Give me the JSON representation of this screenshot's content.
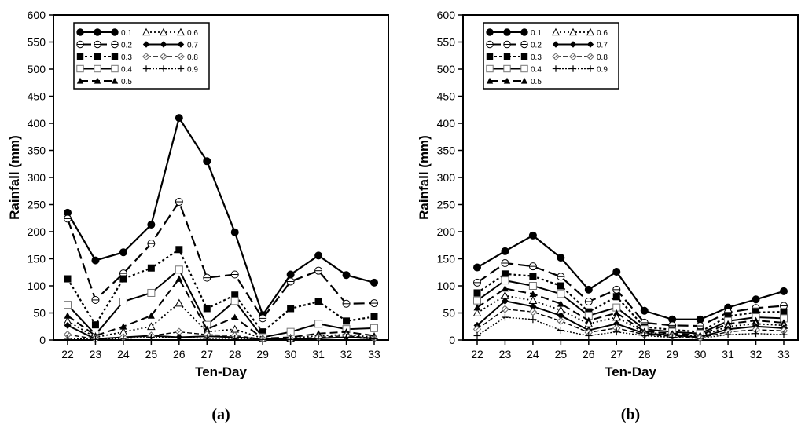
{
  "chart_data": [
    {
      "type": "line",
      "panel_label": "(a)",
      "xlabel": "Ten-Day",
      "ylabel": "Rainfall (mm)",
      "ylim": [
        0,
        600
      ],
      "yticks": [
        "0",
        "50",
        "100",
        "150",
        "200",
        "250",
        "300",
        "350",
        "400",
        "450",
        "500",
        "550",
        "600"
      ],
      "x": [
        "22",
        "23",
        "24",
        "25",
        "26",
        "27",
        "28",
        "29",
        "30",
        "31",
        "32",
        "33"
      ],
      "legend_position": "top-left",
      "series": [
        {
          "name": "0.1",
          "values": [
            235,
            147,
            162,
            213,
            410,
            330,
            199,
            46,
            121,
            156,
            120,
            106
          ]
        },
        {
          "name": "0.2",
          "values": [
            224,
            74,
            123,
            178,
            255,
            115,
            121,
            40,
            108,
            128,
            67,
            68
          ]
        },
        {
          "name": "0.3",
          "values": [
            113,
            28,
            113,
            133,
            167,
            58,
            83,
            15,
            58,
            71,
            35,
            43
          ]
        },
        {
          "name": "0.4",
          "values": [
            65,
            10,
            71,
            87,
            130,
            28,
            72,
            5,
            15,
            30,
            20,
            22
          ]
        },
        {
          "name": "0.5",
          "values": [
            45,
            8,
            25,
            45,
            113,
            20,
            42,
            3,
            5,
            12,
            15,
            8
          ]
        },
        {
          "name": "0.6",
          "values": [
            35,
            5,
            15,
            25,
            68,
            15,
            20,
            3,
            3,
            8,
            10,
            5
          ]
        },
        {
          "name": "0.7",
          "values": [
            27,
            2,
            5,
            8,
            5,
            7,
            5,
            2,
            2,
            3,
            5,
            3
          ]
        },
        {
          "name": "0.8",
          "values": [
            10,
            2,
            5,
            8,
            15,
            10,
            8,
            2,
            2,
            5,
            8,
            3
          ]
        },
        {
          "name": "0.9",
          "values": [
            3,
            1,
            3,
            5,
            5,
            3,
            3,
            1,
            1,
            3,
            5,
            2
          ]
        }
      ]
    },
    {
      "type": "line",
      "panel_label": "(b)",
      "xlabel": "Ten-Day",
      "ylabel": "Rainfall (mm)",
      "ylim": [
        0,
        600
      ],
      "yticks": [
        "0",
        "50",
        "100",
        "150",
        "200",
        "250",
        "300",
        "350",
        "400",
        "450",
        "500",
        "550",
        "600"
      ],
      "x": [
        "22",
        "23",
        "24",
        "25",
        "26",
        "27",
        "28",
        "29",
        "30",
        "31",
        "32",
        "33"
      ],
      "legend_position": "top-left",
      "series": [
        {
          "name": "0.1",
          "values": [
            134,
            164,
            193,
            152,
            93,
            126,
            54,
            38,
            38,
            60,
            75,
            90
          ]
        },
        {
          "name": "0.2",
          "values": [
            106,
            142,
            136,
            117,
            71,
            93,
            32,
            27,
            26,
            51,
            59,
            63
          ]
        },
        {
          "name": "0.3",
          "values": [
            87,
            122,
            118,
            100,
            52,
            80,
            24,
            19,
            15,
            44,
            51,
            52
          ]
        },
        {
          "name": "0.4",
          "values": [
            73,
            110,
            100,
            85,
            45,
            60,
            20,
            15,
            12,
            35,
            42,
            40
          ]
        },
        {
          "name": "0.5",
          "values": [
            60,
            95,
            85,
            67,
            36,
            50,
            16,
            12,
            9,
            30,
            36,
            32
          ]
        },
        {
          "name": "0.6",
          "values": [
            50,
            82,
            73,
            55,
            30,
            42,
            14,
            10,
            7,
            25,
            30,
            27
          ]
        },
        {
          "name": "0.7",
          "values": [
            27,
            72,
            62,
            45,
            18,
            30,
            12,
            9,
            5,
            20,
            25,
            22
          ]
        },
        {
          "name": "0.8",
          "values": [
            20,
            57,
            52,
            35,
            14,
            22,
            10,
            7,
            4,
            15,
            19,
            17
          ]
        },
        {
          "name": "0.9",
          "values": [
            8,
            42,
            38,
            18,
            8,
            15,
            8,
            5,
            3,
            10,
            12,
            10
          ]
        }
      ]
    }
  ]
}
